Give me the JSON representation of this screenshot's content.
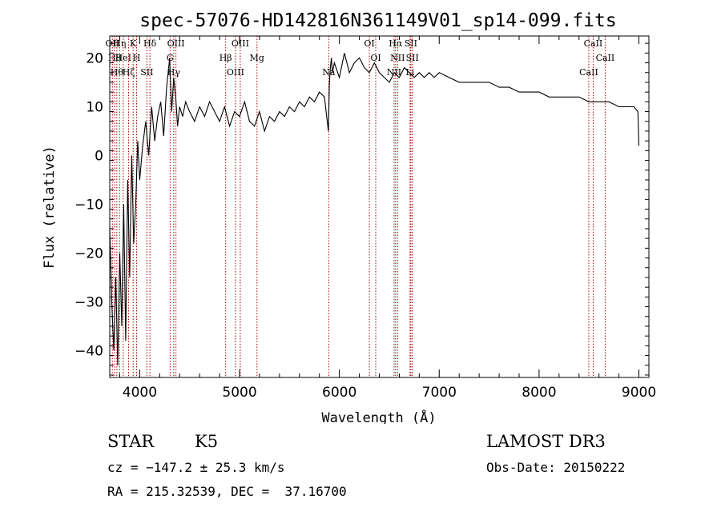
{
  "chart_data": {
    "type": "line",
    "title": "spec-57076-HD142816N361149V01_sp14-099.fits",
    "xlabel": "Wavelength (Å)",
    "ylabel": "Flux (relative)",
    "xlim": [
      3700,
      9100
    ],
    "ylim": [
      -45.5,
      24.5
    ],
    "xticks": [
      4000,
      5000,
      6000,
      7000,
      8000,
      9000
    ],
    "yticks": [
      -40,
      -30,
      -20,
      -10,
      0,
      10,
      20
    ],
    "grid": false,
    "legend": "none",
    "series": [
      {
        "x": [
          3700,
          3720,
          3740,
          3760,
          3780,
          3800,
          3820,
          3840,
          3860,
          3880,
          3900,
          3920,
          3940,
          3960,
          3980,
          4000,
          4030,
          4060,
          4090,
          4120,
          4150,
          4180,
          4210,
          4240,
          4270,
          4300,
          4320,
          4340,
          4360,
          4380,
          4400,
          4430,
          4460,
          4500,
          4550,
          4600,
          4650,
          4700,
          4750,
          4800,
          4850,
          4900,
          4950,
          5000,
          5050,
          5100,
          5150,
          5200,
          5250,
          5300,
          5350,
          5400,
          5450,
          5500,
          5550,
          5600,
          5650,
          5700,
          5750,
          5800,
          5850,
          5890,
          5900,
          5910,
          5920,
          5930,
          5950,
          6000,
          6050,
          6100,
          6150,
          6200,
          6250,
          6300,
          6350,
          6400,
          6450,
          6500,
          6550,
          6600,
          6650,
          6700,
          6750,
          6800,
          6850,
          6900,
          6950,
          7000,
          7100,
          7200,
          7300,
          7400,
          7500,
          7600,
          7700,
          7800,
          7900,
          8000,
          8100,
          8200,
          8300,
          8400,
          8500,
          8600,
          8700,
          8800,
          8900,
          8950,
          8990,
          9000
        ],
        "y": [
          -15,
          -30,
          -40,
          -25,
          -43,
          -20,
          -35,
          -10,
          -38,
          -5,
          -25,
          0,
          -18,
          -10,
          3,
          -5,
          2,
          7,
          0,
          10,
          3,
          8,
          11,
          4,
          14,
          20,
          9,
          16,
          12,
          6,
          10,
          8,
          11,
          9,
          7,
          10,
          8,
          11,
          9,
          7,
          10,
          6,
          9,
          8,
          11,
          7,
          6,
          9,
          5,
          8,
          7,
          9,
          8,
          10,
          9,
          11,
          10,
          12,
          11,
          13,
          12,
          5,
          15,
          18,
          20,
          17,
          19,
          16,
          21,
          17,
          19,
          20,
          18,
          17,
          19,
          17,
          16,
          15,
          17,
          16,
          18,
          17,
          16,
          17,
          16,
          17,
          16,
          17,
          16,
          15,
          15,
          15,
          15,
          14,
          14,
          13,
          13,
          13,
          12,
          12,
          12,
          12,
          11,
          11,
          11,
          10,
          10,
          10,
          9,
          2
        ]
      }
    ],
    "lines": [
      {
        "x": 3726,
        "label": "OII"
      },
      {
        "x": 3750,
        "label": "H8"
      },
      {
        "x": 3771,
        "label": "Hθ"
      },
      {
        "x": 3798,
        "label": "Hη"
      },
      {
        "x": 3835,
        "label": "HeI"
      },
      {
        "x": 3889,
        "label": "Hζ"
      },
      {
        "x": 3934,
        "label": "K"
      },
      {
        "x": 3969,
        "label": "H"
      },
      {
        "x": 4072,
        "label": "SII"
      },
      {
        "x": 4102,
        "label": "Hδ"
      },
      {
        "x": 4304,
        "label": "G"
      },
      {
        "x": 4341,
        "label": "Hγ"
      },
      {
        "x": 4363,
        "label": "OIII"
      },
      {
        "x": 4861,
        "label": "Hβ"
      },
      {
        "x": 4959,
        "label": "OIII"
      },
      {
        "x": 5007,
        "label": "OIII"
      },
      {
        "x": 5175,
        "label": "Mg"
      },
      {
        "x": 5893,
        "label": "Na"
      },
      {
        "x": 6300,
        "label": "OI"
      },
      {
        "x": 6364,
        "label": "OI"
      },
      {
        "x": 6548,
        "label": "NII"
      },
      {
        "x": 6563,
        "label": "Hα"
      },
      {
        "x": 6583,
        "label": "NII"
      },
      {
        "x": 6708,
        "label": "Li"
      },
      {
        "x": 6716,
        "label": "SII"
      },
      {
        "x": 6731,
        "label": "SII"
      },
      {
        "x": 8498,
        "label": "CaII"
      },
      {
        "x": 8542,
        "label": "CaII"
      },
      {
        "x": 8662,
        "label": "CaII"
      }
    ]
  },
  "info": {
    "object": "STAR",
    "subclass": "K5",
    "survey": "LAMOST DR3",
    "cz": "cz = −147.2 ± 25.3 km/s",
    "obs_date": "Obs-Date: 20150222",
    "coords": "RA = 215.32539, DEC =  37.16700"
  },
  "colors": {
    "spectrum": "#000000",
    "lines": "#aa0000"
  }
}
